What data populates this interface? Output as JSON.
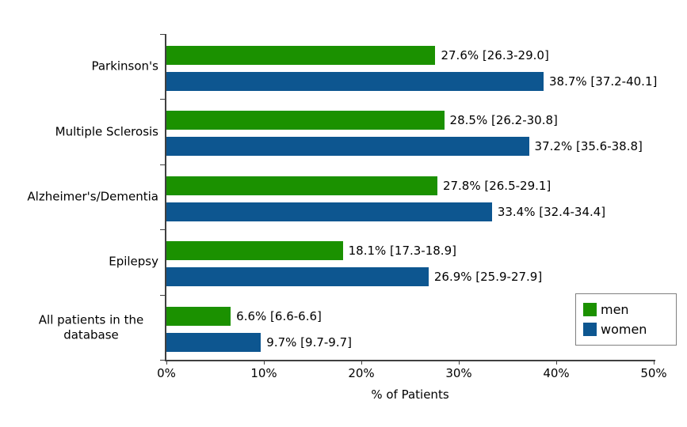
{
  "chart_data": {
    "type": "bar",
    "orientation": "horizontal",
    "title": "",
    "xlabel": "% of Patients",
    "ylabel": "",
    "xlim": [
      0,
      50
    ],
    "x_ticks": [
      {
        "value": 0,
        "label": "0%"
      },
      {
        "value": 10,
        "label": "10%"
      },
      {
        "value": 20,
        "label": "20%"
      },
      {
        "value": 30,
        "label": "30%"
      },
      {
        "value": 40,
        "label": "40%"
      },
      {
        "value": 50,
        "label": "50%"
      }
    ],
    "grid": false,
    "categories": [
      "Parkinson's",
      "Multiple Sclerosis",
      "Alzheimer's/Dementia",
      "Epilepsy",
      "All patients in the\ndatabase"
    ],
    "series": [
      {
        "name": "men",
        "color": "#1b9100",
        "values": [
          27.6,
          28.5,
          27.8,
          18.1,
          6.6
        ],
        "labels": [
          "27.6% [26.3-29.0]",
          "28.5% [26.2-30.8]",
          "27.8% [26.5-29.1]",
          "18.1% [17.3-18.9]",
          "6.6% [6.6-6.6]"
        ]
      },
      {
        "name": "women",
        "color": "#0d5690",
        "values": [
          38.7,
          37.2,
          33.4,
          26.9,
          9.7
        ],
        "labels": [
          "38.7% [37.2-40.1]",
          "37.2% [35.6-38.8]",
          "33.4% [32.4-34.4]",
          "26.9% [25.9-27.9]",
          "9.7% [9.7-9.7]"
        ]
      }
    ],
    "legend": {
      "position": "bottom-right",
      "entries": [
        "men",
        "women"
      ]
    }
  }
}
